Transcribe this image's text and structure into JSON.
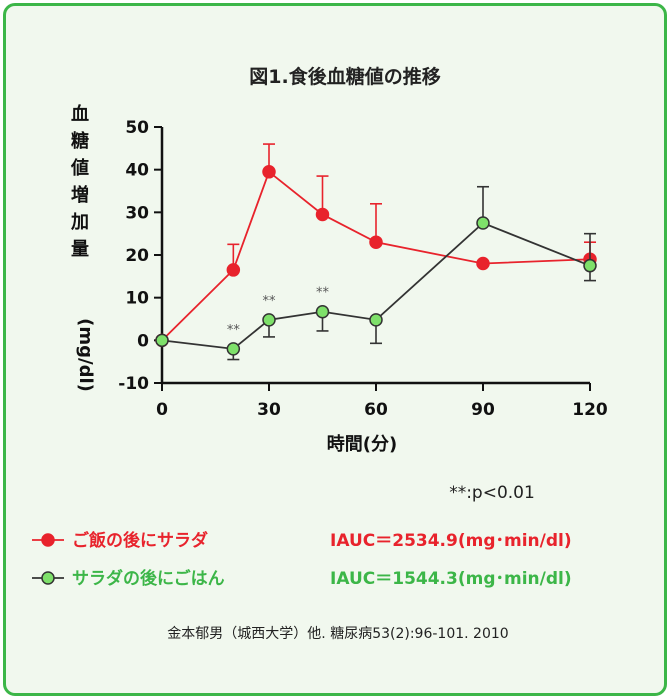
{
  "chart_data": {
    "type": "line",
    "title": "図1.食後血糖値の推移",
    "xlabel": "時間(分)",
    "ylabel": "血糖値増加量",
    "ylabel_unit": "(mg/dl)",
    "x": [
      0,
      20,
      30,
      45,
      60,
      90,
      120
    ],
    "x_ticks": [
      "0",
      "30",
      "60",
      "90",
      "120"
    ],
    "x_tick_values": [
      0,
      30,
      60,
      90,
      120
    ],
    "xlim": [
      0,
      120
    ],
    "ylim": [
      -10,
      50
    ],
    "y_ticks": [
      "50",
      "40",
      "30",
      "20",
      "10",
      "0",
      "-10"
    ],
    "y_tick_values": [
      50,
      40,
      30,
      20,
      10,
      0,
      -10
    ],
    "series": [
      {
        "name": "ご飯の後にサラダ",
        "iauc": "IAUC＝2534.9(mg･min/dl)",
        "color": "#e8232c",
        "marker_color": "#e8232c",
        "values": [
          0,
          16.5,
          39.5,
          29.5,
          23,
          18,
          19
        ],
        "error_up": [
          0,
          6,
          6.5,
          9,
          9,
          0,
          4
        ]
      },
      {
        "name": "サラダの後にごはん",
        "iauc": "IAUC＝1544.3(mg･min/dl)",
        "color": "#333333",
        "marker_color": "#7ee06a",
        "values": [
          0,
          -2,
          4.8,
          6.7,
          4.8,
          27.5,
          17.5
        ],
        "error_up": [
          0,
          0,
          0,
          0,
          0,
          8.5,
          7.5
        ],
        "error_down": [
          0,
          2.5,
          4,
          4.5,
          5.5,
          0,
          3.5
        ]
      }
    ],
    "significance": {
      "marker": "**",
      "x": [
        20,
        30,
        45
      ],
      "legend": "**:p<0.01"
    },
    "source": "金本郁男（城西大学）他. 糖尿病53(2):96-101. 2010"
  }
}
